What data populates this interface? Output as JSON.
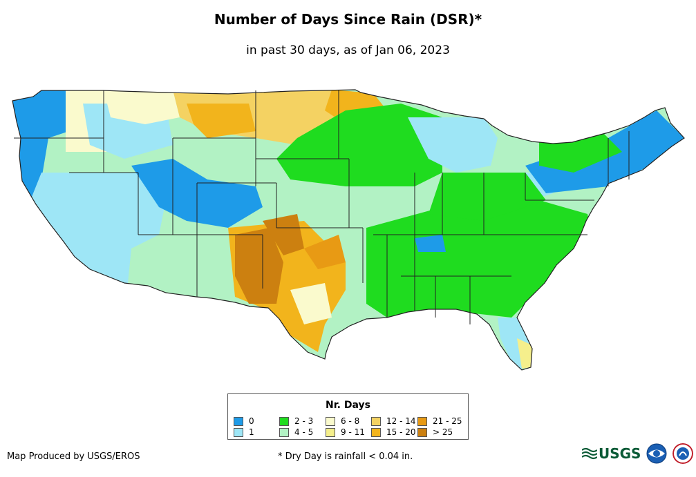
{
  "header": {
    "title": "Number of Days Since Rain (DSR)*",
    "subtitle": "in past 30 days, as of Jan 06, 2023"
  },
  "legend": {
    "title": "Nr. Days",
    "items": [
      {
        "label": "0",
        "color": "#1e9be8"
      },
      {
        "label": "1",
        "color": "#9ee6f6"
      },
      {
        "label": "2 - 3",
        "color": "#1fdc1f"
      },
      {
        "label": "4 - 5",
        "color": "#b2f2c4"
      },
      {
        "label": "6 - 8",
        "color": "#fafacd"
      },
      {
        "label": "9 - 11",
        "color": "#f5ef8c"
      },
      {
        "label": "12 - 14",
        "color": "#f4d262"
      },
      {
        "label": "15 - 20",
        "color": "#f2b41c"
      },
      {
        "label": "21 - 25",
        "color": "#e89a14"
      },
      {
        "label": "> 25",
        "color": "#cc8010"
      }
    ]
  },
  "footer": {
    "credit": "Map Produced by USGS/EROS",
    "footnote": "* Dry Day is rainfall < 0.04 in.",
    "usgs_logo": "USGS",
    "logos": [
      "usgs-logo",
      "noaa-logo",
      "nws-logo"
    ]
  }
}
